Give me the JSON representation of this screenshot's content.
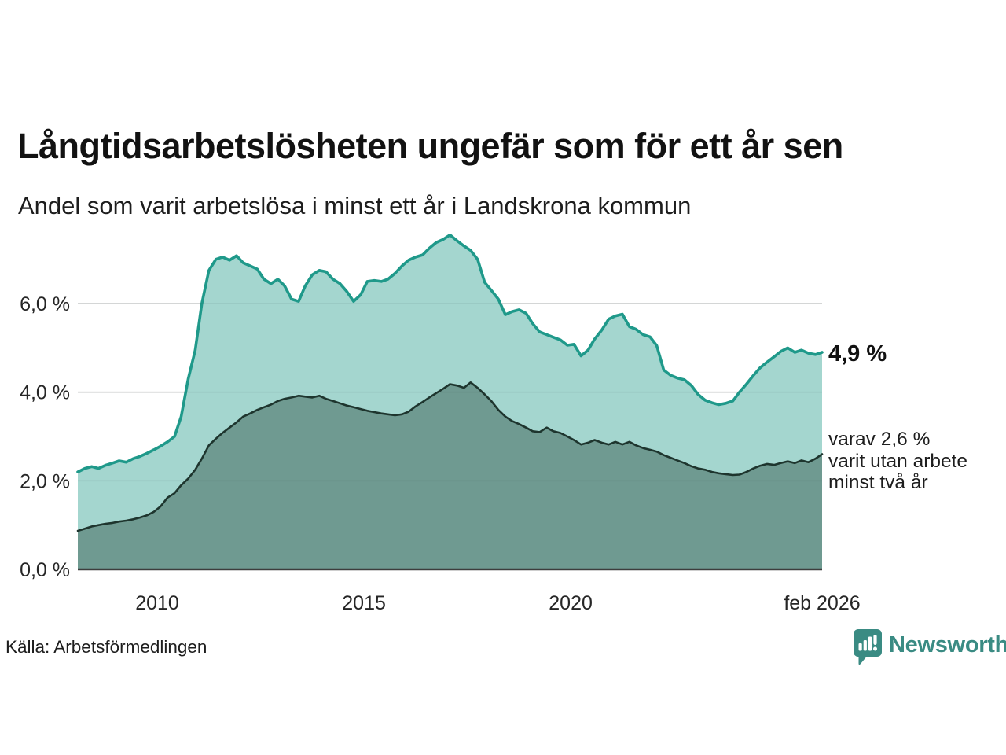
{
  "header": {
    "title": "Långtidsarbetslösheten ungefär som för ett år sen",
    "subtitle": "Andel som varit arbetslösa i minst ett år i Landskrona kommun"
  },
  "colors": {
    "teal_line": "#1f998a",
    "teal_fill": "#a4d6cf",
    "dark_line": "#1e352e",
    "dark_fill": "#6f9a91",
    "grid": "#d8d8d8",
    "baseline": "#3d3d3d",
    "logo_teal": "#3a8b83"
  },
  "chart_data": {
    "type": "area",
    "title": "Långtidsarbetslösheten ungefär som för ett år sen",
    "xlabel": "",
    "ylabel": "",
    "xlim": [
      2008.08,
      2026.08
    ],
    "ylim": [
      0,
      7.9
    ],
    "grid": "horizontal",
    "legend_position": "none",
    "x_ticks": [
      {
        "t": 2010,
        "label": "2010"
      },
      {
        "t": 2015,
        "label": "2015"
      },
      {
        "t": 2020,
        "label": "2020"
      },
      {
        "t": 2026.08,
        "label": "feb 2026"
      }
    ],
    "y_ticks": [
      {
        "v": 0,
        "label": "0,0 %"
      },
      {
        "v": 2,
        "label": "2,0 %"
      },
      {
        "v": 4,
        "label": "4,0 %"
      },
      {
        "v": 6,
        "label": "6,0 %"
      }
    ],
    "x": [
      2008.08,
      2008.25,
      2008.42,
      2008.58,
      2008.75,
      2008.92,
      2009.08,
      2009.25,
      2009.42,
      2009.58,
      2009.75,
      2009.92,
      2010.08,
      2010.25,
      2010.42,
      2010.58,
      2010.75,
      2010.92,
      2011.08,
      2011.25,
      2011.42,
      2011.58,
      2011.75,
      2011.92,
      2012.08,
      2012.25,
      2012.42,
      2012.58,
      2012.75,
      2012.92,
      2013.08,
      2013.25,
      2013.42,
      2013.58,
      2013.75,
      2013.92,
      2014.08,
      2014.25,
      2014.42,
      2014.58,
      2014.75,
      2014.92,
      2015.08,
      2015.25,
      2015.42,
      2015.58,
      2015.75,
      2015.92,
      2016.08,
      2016.25,
      2016.42,
      2016.58,
      2016.75,
      2016.92,
      2017.08,
      2017.25,
      2017.42,
      2017.58,
      2017.75,
      2017.92,
      2018.08,
      2018.25,
      2018.42,
      2018.58,
      2018.75,
      2018.92,
      2019.08,
      2019.25,
      2019.42,
      2019.58,
      2019.75,
      2019.92,
      2020.08,
      2020.25,
      2020.42,
      2020.58,
      2020.75,
      2020.92,
      2021.08,
      2021.25,
      2021.42,
      2021.58,
      2021.75,
      2021.92,
      2022.08,
      2022.25,
      2022.42,
      2022.58,
      2022.75,
      2022.92,
      2023.08,
      2023.25,
      2023.42,
      2023.58,
      2023.75,
      2023.92,
      2024.08,
      2024.25,
      2024.42,
      2024.58,
      2024.75,
      2024.92,
      2025.08,
      2025.25,
      2025.42,
      2025.58,
      2025.75,
      2025.92,
      2026.08
    ],
    "series": [
      {
        "id": "one-year",
        "name": "arbetslösa minst ett år",
        "line_color": "#1f998a",
        "fill_color": "#a4d6cf",
        "line_width": 3.6,
        "end_label": "4,9 %",
        "values": [
          2.2,
          2.28,
          2.32,
          2.28,
          2.35,
          2.4,
          2.45,
          2.42,
          2.5,
          2.55,
          2.62,
          2.7,
          2.78,
          2.88,
          3.0,
          3.45,
          4.3,
          4.95,
          6.0,
          6.75,
          7.0,
          7.05,
          6.98,
          7.08,
          6.92,
          6.85,
          6.78,
          6.55,
          6.45,
          6.55,
          6.4,
          6.1,
          6.05,
          6.4,
          6.65,
          6.75,
          6.72,
          6.55,
          6.45,
          6.28,
          6.05,
          6.2,
          6.5,
          6.52,
          6.5,
          6.55,
          6.68,
          6.85,
          6.98,
          7.05,
          7.1,
          7.25,
          7.38,
          7.45,
          7.55,
          7.42,
          7.3,
          7.2,
          7.0,
          6.48,
          6.3,
          6.1,
          5.75,
          5.82,
          5.86,
          5.78,
          5.55,
          5.36,
          5.3,
          5.24,
          5.18,
          5.06,
          5.08,
          4.82,
          4.95,
          5.2,
          5.4,
          5.65,
          5.72,
          5.76,
          5.48,
          5.42,
          5.3,
          5.25,
          5.05,
          4.5,
          4.38,
          4.32,
          4.28,
          4.15,
          3.95,
          3.82,
          3.76,
          3.72,
          3.75,
          3.8,
          4.0,
          4.18,
          4.38,
          4.55,
          4.68,
          4.8,
          4.92,
          5.0,
          4.9,
          4.95,
          4.88,
          4.85,
          4.9
        ]
      },
      {
        "id": "two-years",
        "name": "utan arbete minst två år",
        "line_color": "#1e352e",
        "fill_color": "#6f9a91",
        "line_width": 2.6,
        "end_label": "varav 2,6 %",
        "values": [
          0.87,
          0.92,
          0.97,
          1.0,
          1.03,
          1.05,
          1.08,
          1.1,
          1.13,
          1.17,
          1.22,
          1.3,
          1.42,
          1.62,
          1.72,
          1.9,
          2.05,
          2.25,
          2.5,
          2.8,
          2.95,
          3.08,
          3.2,
          3.32,
          3.45,
          3.52,
          3.6,
          3.66,
          3.72,
          3.8,
          3.85,
          3.88,
          3.92,
          3.9,
          3.88,
          3.92,
          3.85,
          3.8,
          3.75,
          3.7,
          3.66,
          3.62,
          3.58,
          3.55,
          3.52,
          3.5,
          3.48,
          3.5,
          3.56,
          3.68,
          3.78,
          3.88,
          3.98,
          4.08,
          4.18,
          4.15,
          4.1,
          4.22,
          4.1,
          3.95,
          3.8,
          3.6,
          3.45,
          3.35,
          3.28,
          3.2,
          3.12,
          3.1,
          3.2,
          3.12,
          3.08,
          3.0,
          2.92,
          2.82,
          2.86,
          2.92,
          2.86,
          2.82,
          2.88,
          2.82,
          2.88,
          2.8,
          2.74,
          2.7,
          2.66,
          2.58,
          2.52,
          2.46,
          2.4,
          2.33,
          2.28,
          2.25,
          2.2,
          2.17,
          2.15,
          2.13,
          2.14,
          2.2,
          2.28,
          2.34,
          2.38,
          2.36,
          2.4,
          2.44,
          2.4,
          2.46,
          2.42,
          2.5,
          2.6
        ]
      }
    ],
    "annotations": {
      "total": "4,9 %",
      "detail": "varav 2,6 %\nvarit utan arbete\nminst två år"
    }
  },
  "footer": {
    "source": "Källa: Arbetsförmedlingen",
    "logo_text": "Newsworthy"
  }
}
